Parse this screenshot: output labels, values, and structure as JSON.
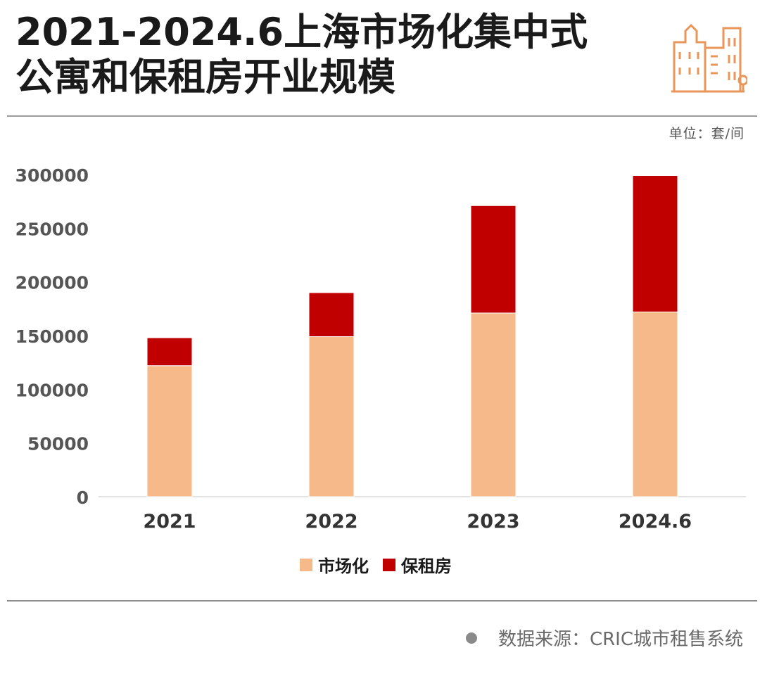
{
  "header": {
    "title_line1": "2021-2024.6上海市场化集中式",
    "title_line2": "公寓和保租房开业规模",
    "logo_icon": "city-buildings-icon"
  },
  "unit_label": "单位：套/间",
  "colors": {
    "market": "#f5b98a",
    "rental": "#c00000",
    "accent": "#e8965a"
  },
  "chart_data": {
    "type": "bar",
    "stacked": true,
    "categories": [
      "2021",
      "2022",
      "2023",
      "2024.6"
    ],
    "series": [
      {
        "name": "市场化",
        "values": [
          122000,
          149000,
          171000,
          172000
        ]
      },
      {
        "name": "保租房",
        "values": [
          26000,
          41000,
          100000,
          127000
        ]
      }
    ],
    "yticks": [
      "300000",
      "250000",
      "200000",
      "150000",
      "100000",
      "50000",
      "0"
    ],
    "ylim": [
      0,
      300000
    ],
    "grid": false,
    "legend_position": "bottom"
  },
  "footer": {
    "source": "数据来源：CRIC城市租售系统"
  }
}
